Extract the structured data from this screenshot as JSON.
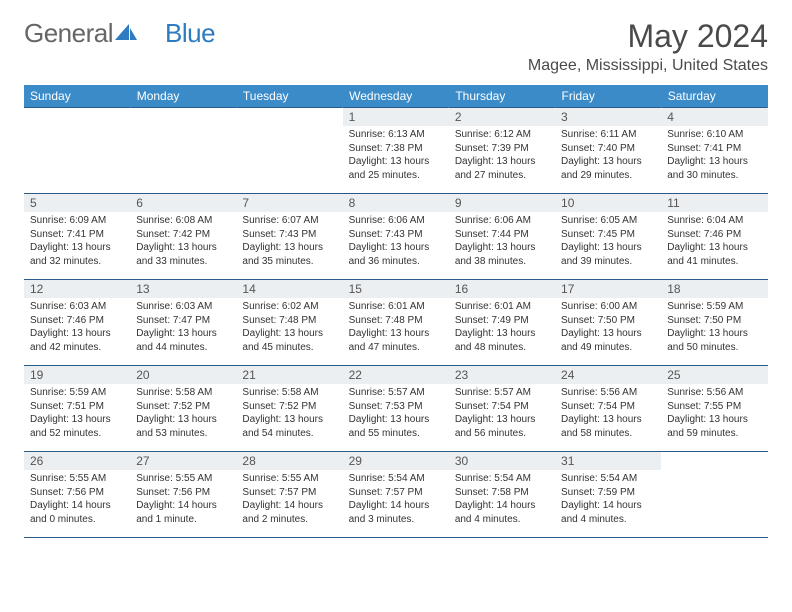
{
  "logo": {
    "text1": "General",
    "text2": "Blue"
  },
  "title": "May 2024",
  "location": "Magee, Mississippi, United States",
  "colors": {
    "header_bg": "#3b8bc9",
    "header_text": "#ffffff",
    "border": "#2a5a8a",
    "daynum_bg": "#eceff1",
    "body_text": "#333333",
    "title_text": "#4a4a4a",
    "logo_gray": "#666666",
    "logo_blue": "#2d7bc0"
  },
  "day_headers": [
    "Sunday",
    "Monday",
    "Tuesday",
    "Wednesday",
    "Thursday",
    "Friday",
    "Saturday"
  ],
  "weeks": [
    [
      null,
      null,
      null,
      {
        "n": "1",
        "sunrise": "6:13 AM",
        "sunset": "7:38 PM",
        "daylight": "13 hours and 25 minutes."
      },
      {
        "n": "2",
        "sunrise": "6:12 AM",
        "sunset": "7:39 PM",
        "daylight": "13 hours and 27 minutes."
      },
      {
        "n": "3",
        "sunrise": "6:11 AM",
        "sunset": "7:40 PM",
        "daylight": "13 hours and 29 minutes."
      },
      {
        "n": "4",
        "sunrise": "6:10 AM",
        "sunset": "7:41 PM",
        "daylight": "13 hours and 30 minutes."
      }
    ],
    [
      {
        "n": "5",
        "sunrise": "6:09 AM",
        "sunset": "7:41 PM",
        "daylight": "13 hours and 32 minutes."
      },
      {
        "n": "6",
        "sunrise": "6:08 AM",
        "sunset": "7:42 PM",
        "daylight": "13 hours and 33 minutes."
      },
      {
        "n": "7",
        "sunrise": "6:07 AM",
        "sunset": "7:43 PM",
        "daylight": "13 hours and 35 minutes."
      },
      {
        "n": "8",
        "sunrise": "6:06 AM",
        "sunset": "7:43 PM",
        "daylight": "13 hours and 36 minutes."
      },
      {
        "n": "9",
        "sunrise": "6:06 AM",
        "sunset": "7:44 PM",
        "daylight": "13 hours and 38 minutes."
      },
      {
        "n": "10",
        "sunrise": "6:05 AM",
        "sunset": "7:45 PM",
        "daylight": "13 hours and 39 minutes."
      },
      {
        "n": "11",
        "sunrise": "6:04 AM",
        "sunset": "7:46 PM",
        "daylight": "13 hours and 41 minutes."
      }
    ],
    [
      {
        "n": "12",
        "sunrise": "6:03 AM",
        "sunset": "7:46 PM",
        "daylight": "13 hours and 42 minutes."
      },
      {
        "n": "13",
        "sunrise": "6:03 AM",
        "sunset": "7:47 PM",
        "daylight": "13 hours and 44 minutes."
      },
      {
        "n": "14",
        "sunrise": "6:02 AM",
        "sunset": "7:48 PM",
        "daylight": "13 hours and 45 minutes."
      },
      {
        "n": "15",
        "sunrise": "6:01 AM",
        "sunset": "7:48 PM",
        "daylight": "13 hours and 47 minutes."
      },
      {
        "n": "16",
        "sunrise": "6:01 AM",
        "sunset": "7:49 PM",
        "daylight": "13 hours and 48 minutes."
      },
      {
        "n": "17",
        "sunrise": "6:00 AM",
        "sunset": "7:50 PM",
        "daylight": "13 hours and 49 minutes."
      },
      {
        "n": "18",
        "sunrise": "5:59 AM",
        "sunset": "7:50 PM",
        "daylight": "13 hours and 50 minutes."
      }
    ],
    [
      {
        "n": "19",
        "sunrise": "5:59 AM",
        "sunset": "7:51 PM",
        "daylight": "13 hours and 52 minutes."
      },
      {
        "n": "20",
        "sunrise": "5:58 AM",
        "sunset": "7:52 PM",
        "daylight": "13 hours and 53 minutes."
      },
      {
        "n": "21",
        "sunrise": "5:58 AM",
        "sunset": "7:52 PM",
        "daylight": "13 hours and 54 minutes."
      },
      {
        "n": "22",
        "sunrise": "5:57 AM",
        "sunset": "7:53 PM",
        "daylight": "13 hours and 55 minutes."
      },
      {
        "n": "23",
        "sunrise": "5:57 AM",
        "sunset": "7:54 PM",
        "daylight": "13 hours and 56 minutes."
      },
      {
        "n": "24",
        "sunrise": "5:56 AM",
        "sunset": "7:54 PM",
        "daylight": "13 hours and 58 minutes."
      },
      {
        "n": "25",
        "sunrise": "5:56 AM",
        "sunset": "7:55 PM",
        "daylight": "13 hours and 59 minutes."
      }
    ],
    [
      {
        "n": "26",
        "sunrise": "5:55 AM",
        "sunset": "7:56 PM",
        "daylight": "14 hours and 0 minutes."
      },
      {
        "n": "27",
        "sunrise": "5:55 AM",
        "sunset": "7:56 PM",
        "daylight": "14 hours and 1 minute."
      },
      {
        "n": "28",
        "sunrise": "5:55 AM",
        "sunset": "7:57 PM",
        "daylight": "14 hours and 2 minutes."
      },
      {
        "n": "29",
        "sunrise": "5:54 AM",
        "sunset": "7:57 PM",
        "daylight": "14 hours and 3 minutes."
      },
      {
        "n": "30",
        "sunrise": "5:54 AM",
        "sunset": "7:58 PM",
        "daylight": "14 hours and 4 minutes."
      },
      {
        "n": "31",
        "sunrise": "5:54 AM",
        "sunset": "7:59 PM",
        "daylight": "14 hours and 4 minutes."
      },
      null
    ]
  ],
  "labels": {
    "sunrise": "Sunrise:",
    "sunset": "Sunset:",
    "daylight": "Daylight:"
  }
}
